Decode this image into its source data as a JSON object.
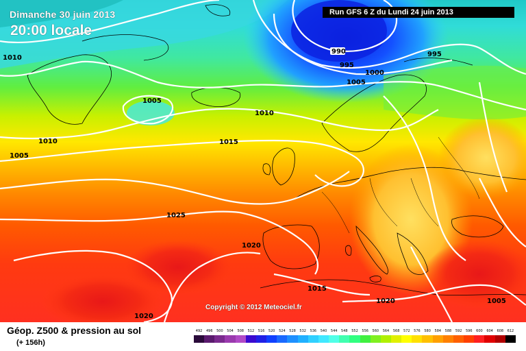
{
  "header": {
    "date": "Dimanche 30 juin 2013",
    "local_time": "20:00 locale",
    "run": "Run GFS 6 Z du Lundi 24 juin 2013"
  },
  "copyright": "Copyright © 2012 Meteociel.fr",
  "footer": {
    "field": "Géop. Z500 & pression au sol",
    "forecast_hour": "(+ 156h)"
  },
  "isobar_labels": [
    "1010",
    "1005",
    "990",
    "995",
    "1000",
    "1005",
    "995",
    "1010",
    "1010",
    "1005",
    "1015",
    "1025",
    "1020",
    "1015",
    "1020",
    "1020",
    "1005"
  ],
  "scale": {
    "ticks": [
      "492",
      "496",
      "500",
      "504",
      "508",
      "512",
      "516",
      "520",
      "524",
      "528",
      "532",
      "536",
      "540",
      "544",
      "548",
      "552",
      "556",
      "560",
      "564",
      "568",
      "572",
      "576",
      "580",
      "584",
      "588",
      "592",
      "596",
      "600",
      "604",
      "608",
      "612"
    ],
    "colors": [
      "#2a0a3a",
      "#5a1a6e",
      "#7a2a8e",
      "#9a3aae",
      "#b04ac6",
      "#3a0ad0",
      "#2020e6",
      "#1040ff",
      "#1a6aff",
      "#1e90ff",
      "#20b0ff",
      "#30d0ff",
      "#40e8ff",
      "#50ffe8",
      "#40ffb0",
      "#30ff80",
      "#40f040",
      "#80f020",
      "#b0f000",
      "#e0f000",
      "#ffff00",
      "#ffe000",
      "#ffc000",
      "#ffa000",
      "#ff8000",
      "#ff6000",
      "#ff4000",
      "#ff2020",
      "#e00000",
      "#b00000",
      "#000000"
    ]
  }
}
